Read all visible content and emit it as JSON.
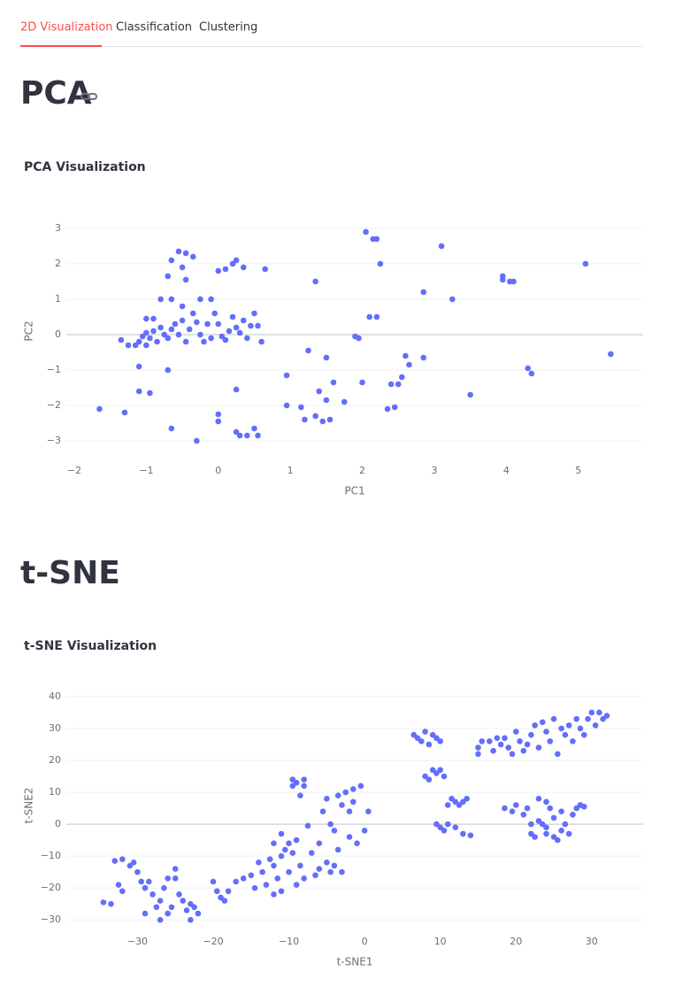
{
  "tabs": [
    "2D Visualization",
    "Classification",
    "Clustering"
  ],
  "headings": [
    "PCA",
    "t-SNE"
  ],
  "chart_data": [
    {
      "type": "scatter",
      "title": "PCA Visualization",
      "x_label": "PC1",
      "y_label": "PC2",
      "color": "#636efa",
      "grid": "y",
      "xlim": [
        -2.11,
        5.9
      ],
      "ylim": [
        -3.5,
        3.7
      ],
      "xticks": [
        {
          "value": -2,
          "label": "−2"
        },
        {
          "value": -1,
          "label": "−1"
        },
        0,
        1,
        2,
        3,
        4,
        5
      ],
      "yticks": [
        {
          "value": -3,
          "label": "−3"
        },
        {
          "value": -2,
          "label": "−2"
        },
        {
          "value": -1,
          "label": "−1"
        },
        0,
        1,
        2,
        3
      ],
      "x": [
        -1.65,
        -1.3,
        -1.35,
        -1.25,
        -1.15,
        -1.1,
        -1.05,
        -1.0,
        -1.0,
        -0.95,
        -0.9,
        -0.85,
        -0.8,
        -0.75,
        -0.7,
        -0.65,
        -0.6,
        -0.55,
        -0.5,
        -0.45,
        -0.4,
        -0.35,
        -0.3,
        -0.25,
        -0.2,
        -0.15,
        -0.1,
        -0.05,
        0.0,
        0.05,
        0.1,
        0.15,
        0.2,
        0.25,
        0.3,
        0.35,
        0.4,
        0.45,
        0.5,
        0.55,
        0.6,
        -1.0,
        -0.9,
        -0.8,
        -0.65,
        -0.5,
        -0.7,
        -0.65,
        -0.55,
        -0.5,
        -0.45,
        -0.35,
        -0.45,
        -0.25,
        -0.1,
        0.0,
        0.1,
        0.2,
        0.25,
        0.35,
        0.65,
        -1.1,
        -1.1,
        -0.95,
        -0.7,
        -0.65,
        -0.3,
        0.0,
        0.0,
        0.25,
        0.25,
        0.3,
        0.4,
        0.5,
        0.55,
        0.95,
        0.95,
        1.15,
        1.2,
        1.25,
        1.35,
        1.35,
        1.4,
        1.45,
        1.5,
        1.5,
        1.55,
        1.6,
        1.75,
        1.9,
        1.95,
        2.0,
        2.05,
        2.1,
        2.15,
        2.2,
        2.2,
        2.25,
        2.35,
        2.4,
        2.45,
        2.5,
        2.55,
        2.6,
        2.65,
        2.85,
        2.85,
        3.1,
        3.25,
        3.5,
        3.95,
        3.95,
        4.05,
        4.1,
        4.3,
        4.35,
        5.1,
        5.45
      ],
      "values": [
        -2.1,
        -2.2,
        -0.15,
        -0.3,
        -0.3,
        -0.2,
        -0.05,
        -0.3,
        0.05,
        -0.1,
        0.1,
        -0.2,
        0.2,
        0.0,
        -0.1,
        0.15,
        0.3,
        0.0,
        0.4,
        -0.2,
        0.15,
        0.6,
        0.35,
        0.0,
        -0.2,
        0.3,
        -0.1,
        0.6,
        0.3,
        -0.05,
        -0.15,
        0.1,
        0.5,
        0.2,
        0.05,
        0.4,
        -0.1,
        0.25,
        0.6,
        0.25,
        -0.2,
        0.45,
        0.45,
        1.0,
        1.0,
        0.8,
        1.65,
        2.1,
        2.35,
        1.9,
        2.3,
        2.2,
        1.55,
        1.0,
        1.0,
        1.8,
        1.85,
        2.0,
        2.1,
        1.9,
        1.85,
        -0.9,
        -1.6,
        -1.65,
        -1.0,
        -2.65,
        -3.0,
        -2.25,
        -2.45,
        -1.55,
        -2.75,
        -2.85,
        -2.85,
        -2.65,
        -2.85,
        -2.0,
        -1.15,
        -2.05,
        -2.4,
        -0.45,
        -2.3,
        1.5,
        -1.6,
        -2.45,
        -1.85,
        -0.65,
        -2.4,
        -1.35,
        -1.9,
        -0.05,
        -0.1,
        -1.35,
        2.9,
        0.5,
        2.7,
        2.7,
        0.5,
        2.0,
        -2.1,
        -1.4,
        -2.05,
        -1.4,
        -1.2,
        -0.6,
        -0.85,
        1.2,
        -0.65,
        2.5,
        1.0,
        -1.7,
        1.55,
        1.65,
        1.5,
        1.5,
        -0.95,
        -1.1,
        2.0,
        -0.55
      ]
    },
    {
      "type": "scatter",
      "title": "t-SNE Visualization",
      "x_label": "t-SNE1",
      "y_label": "t-SNE2",
      "color": "#636efa",
      "grid": "y",
      "xlim": [
        -39.4,
        36.8
      ],
      "ylim": [
        -33,
        44.7
      ],
      "xticks": [
        {
          "value": -30,
          "label": "−30"
        },
        {
          "value": -20,
          "label": "−20"
        },
        {
          "value": -10,
          "label": "−10"
        },
        0,
        10,
        20,
        30
      ],
      "yticks": [
        {
          "value": -30,
          "label": "−30"
        },
        {
          "value": -20,
          "label": "−20"
        },
        {
          "value": -10,
          "label": "−10"
        },
        0,
        10,
        20,
        30,
        40
      ],
      "x": [
        -34.5,
        -33.5,
        -33,
        -32.5,
        -32,
        -32,
        -31,
        -30.5,
        -30,
        -29.5,
        -29,
        -28.5,
        -28,
        -27.5,
        -27,
        -26.5,
        -26,
        -25.5,
        -25,
        -24.5,
        -24,
        -23.5,
        -23,
        -22.5,
        -22,
        -25,
        -27,
        -26,
        -23,
        -29,
        -20,
        -19.5,
        -19,
        -18.5,
        -18,
        -17,
        -16,
        -15,
        -14.5,
        -14,
        -13.5,
        -13,
        -12.5,
        -12,
        -12,
        -11.5,
        -11,
        -11,
        -10.5,
        -10,
        -10,
        -9.5,
        -9,
        -9,
        -8.5,
        -8,
        -12,
        -11,
        -9.5,
        -9.5,
        -9,
        -8.5,
        -8,
        -8,
        -7.5,
        -7,
        -6.5,
        -6,
        -5.5,
        -5,
        -5,
        -4.5,
        -4,
        -4,
        -3.5,
        -3.5,
        -3,
        -2.5,
        -2,
        -2,
        -1.5,
        -1.5,
        -1,
        -0.5,
        0,
        0.5,
        -6,
        -3,
        -4.5,
        6.5,
        7,
        7.5,
        8,
        8.5,
        9,
        9.5,
        10,
        8,
        8.5,
        9,
        9.5,
        10,
        10.5,
        9.5,
        10,
        10.5,
        11,
        11,
        11.5,
        12,
        12.5,
        13,
        13,
        13.5,
        14,
        12,
        15,
        15,
        15.5,
        16.5,
        17,
        17.5,
        18,
        18.5,
        19,
        19.5,
        20,
        20.5,
        21,
        21.5,
        22,
        22.5,
        23,
        23.5,
        24,
        24.5,
        25,
        25.5,
        26,
        26.5,
        27,
        27.5,
        28,
        28.5,
        29,
        29.5,
        30,
        30.5,
        31,
        31.5,
        32,
        18.5,
        19.5,
        20,
        21,
        21.5,
        22,
        22.5,
        23,
        23,
        23.5,
        24,
        24,
        24.5,
        25,
        25,
        25.5,
        26,
        26,
        26.5,
        27,
        27.5,
        28,
        28.5,
        29,
        24,
        22
      ],
      "values": [
        -24.5,
        -25,
        -11.5,
        -19,
        -21,
        -11,
        -13,
        -12,
        -15,
        -18,
        -20,
        -18,
        -22,
        -26,
        -24,
        -20,
        -28,
        -26,
        -17,
        -22,
        -24,
        -27,
        -30,
        -26,
        -28,
        -14,
        -30,
        -17,
        -25,
        -28,
        -18,
        -21,
        -23,
        -24,
        -21,
        -18,
        -17,
        -16,
        -20,
        -12,
        -15,
        -19,
        -11,
        -22,
        -13,
        -17,
        -21,
        -3,
        -8,
        -15,
        -6,
        -9,
        -19,
        -5,
        -13,
        -17,
        -6,
        -10,
        14,
        12,
        13,
        9,
        14,
        12,
        -0.5,
        -9,
        -16,
        -6,
        4,
        -12,
        8,
        -15,
        -2,
        -13,
        9,
        -8,
        6,
        10,
        -4,
        4,
        7,
        11,
        -6,
        12,
        -2,
        4,
        -14,
        -15,
        0,
        28,
        27,
        26,
        29,
        25,
        28,
        27,
        26,
        15,
        14,
        17,
        16,
        17,
        15,
        0,
        -1,
        -2,
        6,
        0,
        8,
        -1,
        6,
        7,
        -3,
        8,
        -3.5,
        7,
        24,
        22,
        26,
        26,
        23,
        27,
        25,
        27,
        24,
        22,
        29,
        26,
        23,
        25,
        28,
        31,
        24,
        32,
        29,
        26,
        33,
        22,
        30,
        28,
        31,
        26,
        33,
        30,
        28,
        33,
        35,
        31,
        35,
        33,
        34,
        5,
        4,
        6,
        3,
        5,
        -3,
        -4,
        8,
        1,
        0,
        7,
        -1,
        5,
        -4,
        2,
        -5,
        4,
        -2,
        0,
        -3,
        3,
        5,
        6,
        5.5,
        -3,
        0
      ]
    }
  ]
}
